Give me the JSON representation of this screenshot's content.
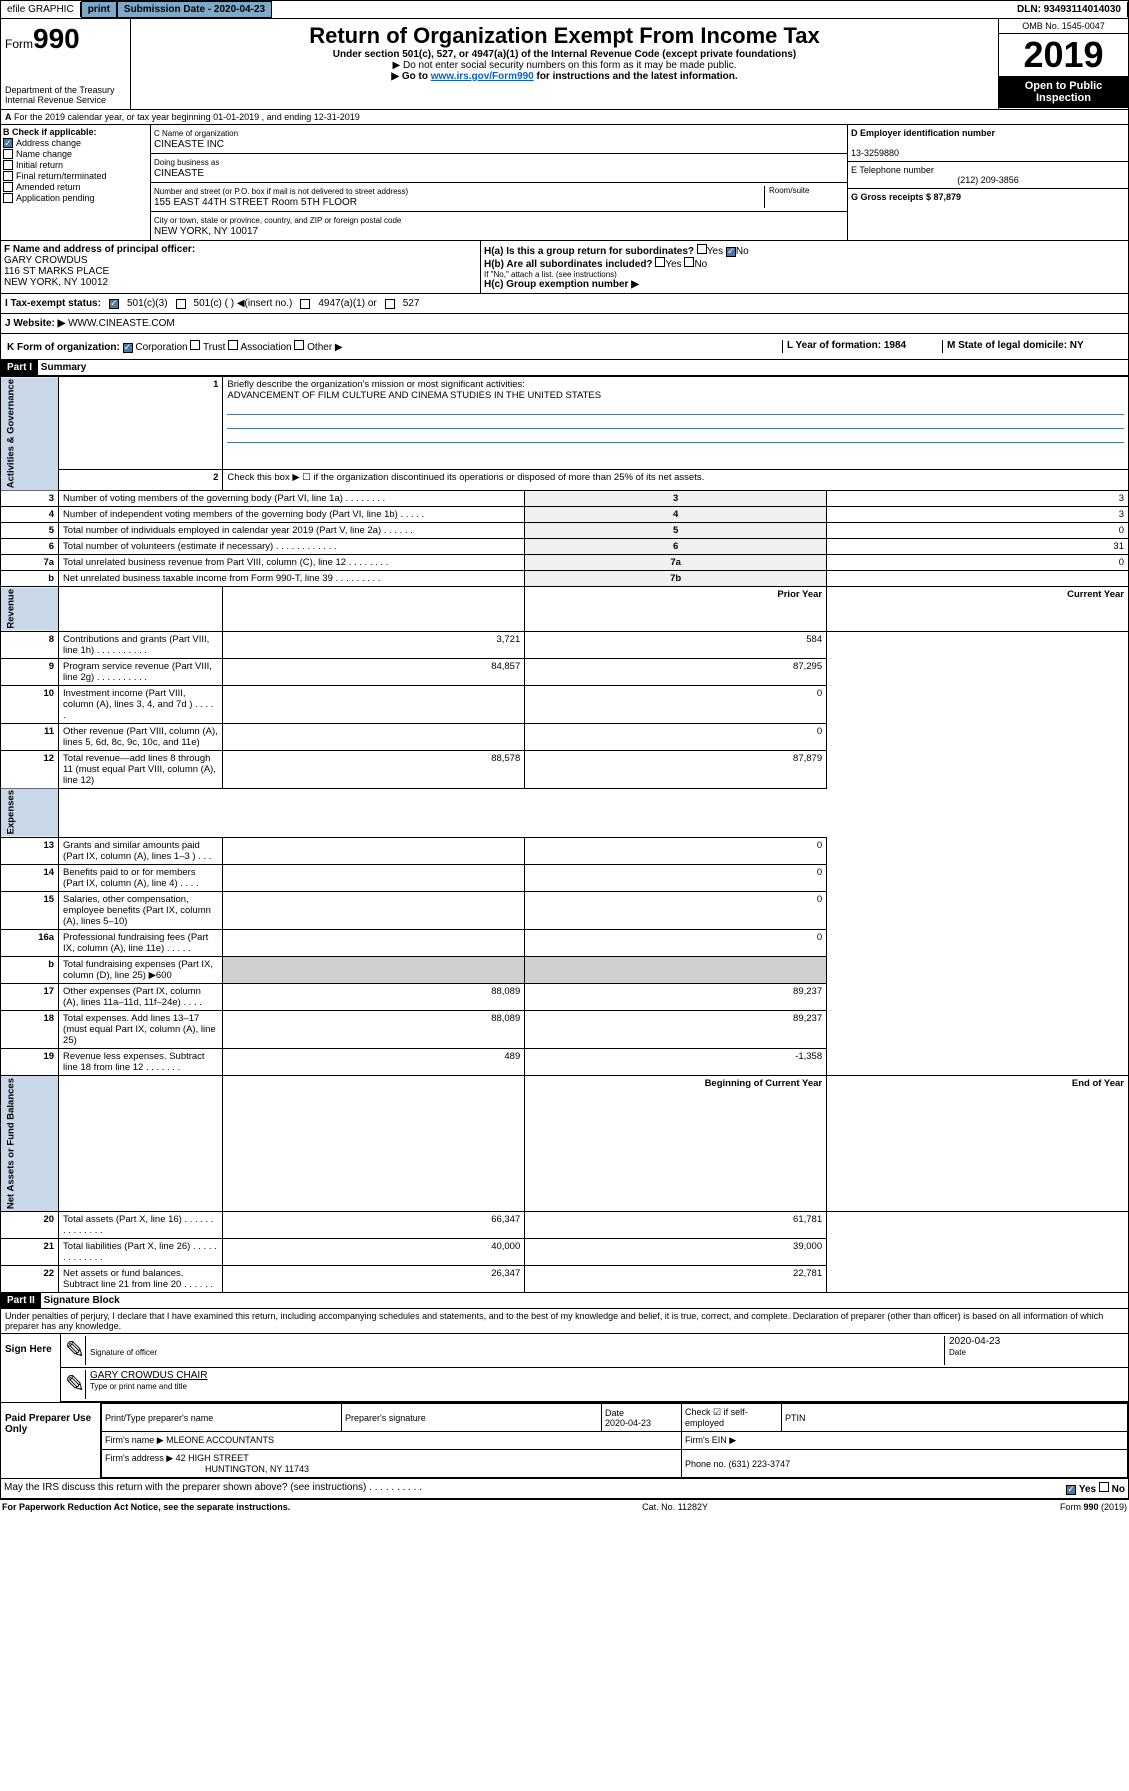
{
  "topbar": {
    "efile": "efile GRAPHIC",
    "print": "print",
    "submission_label": "Submission Date - 2020-04-23",
    "dln": "DLN: 93493114014030"
  },
  "header": {
    "form_prefix": "Form",
    "form_number": "990",
    "dept": "Department of the Treasury",
    "irs": "Internal Revenue Service",
    "title": "Return of Organization Exempt From Income Tax",
    "subtitle": "Under section 501(c), 527, or 4947(a)(1) of the Internal Revenue Code (except private foundations)",
    "note1": "▶ Do not enter social security numbers on this form as it may be made public.",
    "note2_pre": "▶ Go to ",
    "note2_link": "www.irs.gov/Form990",
    "note2_post": " for instructions and the latest information.",
    "omb": "OMB No. 1545-0047",
    "year": "2019",
    "open": "Open to Public Inspection"
  },
  "section_a": {
    "tax_year": "For the 2019 calendar year, or tax year beginning 01-01-2019   , and ending 12-31-2019",
    "check_label": "B Check if applicable:",
    "checks": {
      "address": "Address change",
      "name": "Name change",
      "initial": "Initial return",
      "final": "Final return/terminated",
      "amended": "Amended return",
      "application": "Application pending"
    },
    "c_name_label": "C Name of organization",
    "c_name": "CINEASTE INC",
    "dba_label": "Doing business as",
    "dba": "CINEASTE",
    "address_label": "Number and street (or P.O. box if mail is not delivered to street address)",
    "room_label": "Room/suite",
    "address": "155 EAST 44TH STREET Room 5TH FLOOR",
    "city_label": "City or town, state or province, country, and ZIP or foreign postal code",
    "city": "NEW YORK, NY  10017",
    "d_label": "D Employer identification number",
    "d_ein": "13-3259880",
    "e_label": "E Telephone number",
    "e_phone": "(212) 209-3856",
    "g_label": "G Gross receipts $ 87,879",
    "f_label": "F  Name and address of principal officer:",
    "f_name": "GARY CROWDUS",
    "f_addr1": "116 ST MARKS PLACE",
    "f_addr2": "NEW YORK, NY  10012",
    "ha_label": "H(a)  Is this a group return for subordinates?",
    "hb_label": "H(b)  Are all subordinates included?",
    "hb_note": "If \"No,\" attach a list. (see instructions)",
    "hc_label": "H(c)  Group exemption number ▶",
    "yes": "Yes",
    "no": "No"
  },
  "tax_exempt": {
    "i_label": "I   Tax-exempt status:",
    "opt1": "501(c)(3)",
    "opt2": "501(c) (   ) ◀(insert no.)",
    "opt3": "4947(a)(1) or",
    "opt4": "527"
  },
  "website": {
    "j_label": "J   Website: ▶",
    "url": "WWW.CINEASTE.COM"
  },
  "form_org": {
    "k_label": "K Form of organization:",
    "corp": "Corporation",
    "trust": "Trust",
    "assoc": "Association",
    "other": "Other ▶",
    "l_label": "L Year of formation: 1984",
    "m_label": "M State of legal domicile: NY"
  },
  "part1": {
    "header": "Part I",
    "title": "Summary",
    "q1": "Briefly describe the organization's mission or most significant activities:",
    "mission": "ADVANCEMENT OF FILM CULTURE AND CINEMA STUDIES IN THE UNITED STATES",
    "q2": "Check this box ▶ ☐  if the organization discontinued its operations or disposed of more than 25% of its net assets.",
    "rows": [
      {
        "n": "3",
        "t": "Number of voting members of the governing body (Part VI, line 1a)  .    .    .    .    .    .    .    .",
        "l": "3",
        "v": "3"
      },
      {
        "n": "4",
        "t": "Number of independent voting members of the governing body (Part VI, line 1b)  .    .    .    .    .",
        "l": "4",
        "v": "3"
      },
      {
        "n": "5",
        "t": "Total number of individuals employed in calendar year 2019 (Part V, line 2a)  .    .    .    .    .    .",
        "l": "5",
        "v": "0"
      },
      {
        "n": "6",
        "t": "Total number of volunteers (estimate if necessary)  .    .    .    .    .    .    .    .    .    .    .    .",
        "l": "6",
        "v": "31"
      },
      {
        "n": "7a",
        "t": "Total unrelated business revenue from Part VIII, column (C), line 12  .    .    .    .    .    .    .    .",
        "l": "7a",
        "v": "0"
      },
      {
        "n": "b",
        "t": "Net unrelated business taxable income from Form 990-T, line 39  .    .    .    .    .    .    .    .    .",
        "l": "7b",
        "v": ""
      }
    ],
    "prior_year": "Prior Year",
    "current_year": "Current Year",
    "rev_rows": [
      {
        "n": "8",
        "t": "Contributions and grants (Part VIII, line 1h)  .    .    .    .    .    .    .    .    .    .",
        "p": "3,721",
        "c": "584"
      },
      {
        "n": "9",
        "t": "Program service revenue (Part VIII, line 2g)  .    .    .    .    .    .    .    .    .    .",
        "p": "84,857",
        "c": "87,295"
      },
      {
        "n": "10",
        "t": "Investment income (Part VIII, column (A), lines 3, 4, and 7d )  .    .    .    .    .",
        "p": "",
        "c": "0"
      },
      {
        "n": "11",
        "t": "Other revenue (Part VIII, column (A), lines 5, 6d, 8c, 9c, 10c, and 11e)",
        "p": "",
        "c": "0"
      },
      {
        "n": "12",
        "t": "Total revenue—add lines 8 through 11 (must equal Part VIII, column (A), line 12)",
        "p": "88,578",
        "c": "87,879"
      }
    ],
    "exp_rows": [
      {
        "n": "13",
        "t": "Grants and similar amounts paid (Part IX, column (A), lines 1–3 )  .    .    .",
        "p": "",
        "c": "0"
      },
      {
        "n": "14",
        "t": "Benefits paid to or for members (Part IX, column (A), line 4)  .    .    .    .",
        "p": "",
        "c": "0"
      },
      {
        "n": "15",
        "t": "Salaries, other compensation, employee benefits (Part IX, column (A), lines 5–10)",
        "p": "",
        "c": "0"
      },
      {
        "n": "16a",
        "t": "Professional fundraising fees (Part IX, column (A), line 11e)  .    .    .    .    .",
        "p": "",
        "c": "0"
      },
      {
        "n": "b",
        "t": "Total fundraising expenses (Part IX, column (D), line 25) ▶600",
        "p": "GRAY",
        "c": "GRAY"
      },
      {
        "n": "17",
        "t": "Other expenses (Part IX, column (A), lines 11a–11d, 11f–24e)  .    .    .    .",
        "p": "88,089",
        "c": "89,237"
      },
      {
        "n": "18",
        "t": "Total expenses. Add lines 13–17 (must equal Part IX, column (A), line 25)",
        "p": "88,089",
        "c": "89,237"
      },
      {
        "n": "19",
        "t": "Revenue less expenses. Subtract line 18 from line 12  .    .    .    .    .    .    .",
        "p": "489",
        "c": "-1,358"
      }
    ],
    "begin_year": "Beginning of Current Year",
    "end_year": "End of Year",
    "net_rows": [
      {
        "n": "20",
        "t": "Total assets (Part X, line 16)  .    .    .    .    .    .    .    .    .    .    .    .    .    .",
        "p": "66,347",
        "c": "61,781"
      },
      {
        "n": "21",
        "t": "Total liabilities (Part X, line 26)  .    .    .    .    .    .    .    .    .    .    .    .    .",
        "p": "40,000",
        "c": "39,000"
      },
      {
        "n": "22",
        "t": "Net assets or fund balances. Subtract line 21 from line 20  .    .    .    .    .    .",
        "p": "26,347",
        "c": "22,781"
      }
    ],
    "vert_activities": "Activities & Governance",
    "vert_revenue": "Revenue",
    "vert_expenses": "Expenses",
    "vert_net": "Net Assets or Fund Balances"
  },
  "part2": {
    "header": "Part II",
    "title": "Signature Block",
    "penalty": "Under penalties of perjury, I declare that I have examined this return, including accompanying schedules and statements, and to the best of my knowledge and belief, it is true, correct, and complete. Declaration of preparer (other than officer) is based on all information of which preparer has any knowledge.",
    "sign_here": "Sign Here",
    "sig_officer": "Signature of officer",
    "sig_date": "2020-04-23",
    "date_label": "Date",
    "officer_name": "GARY CROWDUS  CHAIR",
    "type_name": "Type or print name and title",
    "paid_prep": "Paid Preparer Use Only",
    "prep_name_label": "Print/Type preparer's name",
    "prep_sig_label": "Preparer's signature",
    "prep_date_label": "Date",
    "prep_date": "2020-04-23",
    "check_self": "Check ☑ if self-employed",
    "ptin": "PTIN",
    "firm_name_label": "Firm's name    ▶",
    "firm_name": "MLEONE ACCOUNTANTS",
    "firm_ein": "Firm's EIN ▶",
    "firm_addr_label": "Firm's address ▶",
    "firm_addr": "42 HIGH STREET",
    "firm_city": "HUNTINGTON, NY  11743",
    "phone_label": "Phone no. (631) 223-3747",
    "discuss": "May the IRS discuss this return with the preparer shown above? (see instructions)   .    .    .    .    .    .    .    .    .    .",
    "yes": "Yes",
    "no": "No"
  },
  "footer": {
    "paperwork": "For Paperwork Reduction Act Notice, see the separate instructions.",
    "cat": "Cat. No. 11282Y",
    "form": "Form 990 (2019)"
  }
}
